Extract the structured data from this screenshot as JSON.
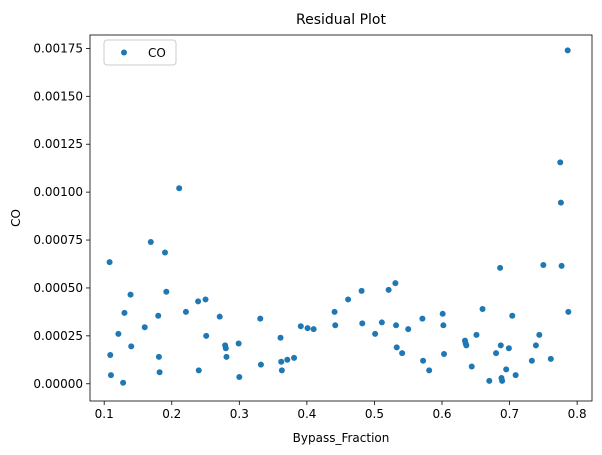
{
  "chart_data": {
    "type": "scatter",
    "title": "Residual Plot",
    "xlabel": "Bypass_Fraction",
    "ylabel": "CO",
    "xlim": [
      0.079,
      0.822
    ],
    "ylim": [
      -9e-05,
      0.00182
    ],
    "xticks": [
      0.1,
      0.2,
      0.3,
      0.4,
      0.5,
      0.6,
      0.7,
      0.8
    ],
    "xtick_labels": [
      "0.1",
      "0.2",
      "0.3",
      "0.4",
      "0.5",
      "0.6",
      "0.7",
      "0.8"
    ],
    "yticks": [
      0,
      0.00025,
      0.0005,
      0.00075,
      0.001,
      0.00125,
      0.0015,
      0.00175
    ],
    "ytick_labels": [
      "0.00000",
      "0.00025",
      "0.00050",
      "0.00075",
      "0.00100",
      "0.00125",
      "0.00150",
      "0.00175"
    ],
    "grid": false,
    "legend_position": "top-left",
    "series": [
      {
        "name": "CO",
        "color": "#1f77b4",
        "x": [
          0.108,
          0.109,
          0.11,
          0.121,
          0.128,
          0.13,
          0.139,
          0.14,
          0.16,
          0.169,
          0.18,
          0.181,
          0.182,
          0.19,
          0.192,
          0.211,
          0.221,
          0.239,
          0.24,
          0.25,
          0.251,
          0.271,
          0.279,
          0.28,
          0.281,
          0.299,
          0.3,
          0.331,
          0.332,
          0.361,
          0.362,
          0.363,
          0.371,
          0.381,
          0.391,
          0.401,
          0.41,
          0.441,
          0.442,
          0.461,
          0.481,
          0.482,
          0.501,
          0.511,
          0.521,
          0.531,
          0.532,
          0.533,
          0.541,
          0.55,
          0.571,
          0.572,
          0.581,
          0.601,
          0.602,
          0.603,
          0.634,
          0.635,
          0.636,
          0.644,
          0.651,
          0.66,
          0.67,
          0.68,
          0.686,
          0.687,
          0.688,
          0.689,
          0.695,
          0.699,
          0.704,
          0.709,
          0.733,
          0.739,
          0.744,
          0.75,
          0.761,
          0.775,
          0.776,
          0.777,
          0.786,
          0.787
        ],
        "y": [
          0.000635,
          0.00015,
          4.5e-05,
          0.00026,
          5e-06,
          0.00037,
          0.000465,
          0.000195,
          0.000295,
          0.00074,
          0.000355,
          0.00014,
          6e-05,
          0.000685,
          0.00048,
          0.00102,
          0.000375,
          0.00043,
          7e-05,
          0.00044,
          0.00025,
          0.00035,
          0.0002,
          0.000185,
          0.00014,
          0.00021,
          3.5e-05,
          0.00034,
          0.0001,
          0.00024,
          0.000115,
          7e-05,
          0.000125,
          0.000135,
          0.0003,
          0.00029,
          0.000285,
          0.000375,
          0.000305,
          0.00044,
          0.000485,
          0.000315,
          0.00026,
          0.00032,
          0.00049,
          0.000525,
          0.000305,
          0.00019,
          0.00016,
          0.000285,
          0.00034,
          0.00012,
          7e-05,
          0.000365,
          0.000305,
          0.000155,
          0.000225,
          0.00021,
          0.0002,
          9e-05,
          0.000255,
          0.00039,
          1.5e-05,
          0.00016,
          0.000605,
          0.0002,
          3e-05,
          1.5e-05,
          7.5e-05,
          0.000185,
          0.000355,
          4.5e-05,
          0.00012,
          0.0002,
          0.000255,
          0.00062,
          0.00013,
          0.001155,
          0.000945,
          0.000615,
          0.00174,
          0.000375
        ]
      }
    ]
  }
}
